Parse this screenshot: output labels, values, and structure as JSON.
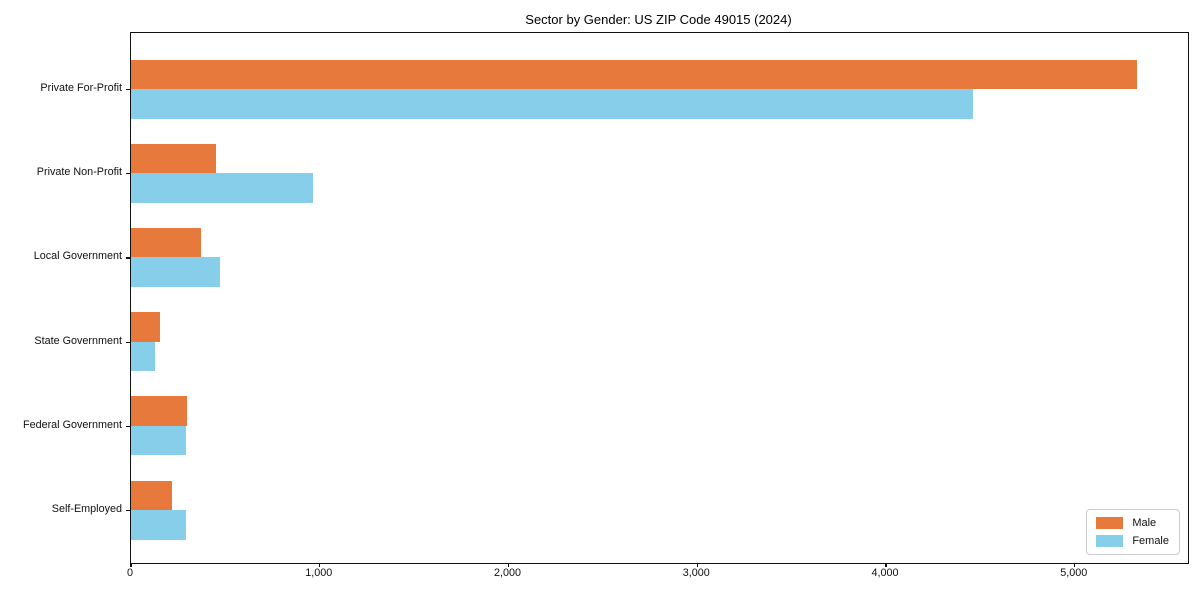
{
  "chart_data": {
    "type": "bar",
    "orientation": "horizontal",
    "title": "Sector by Gender: US ZIP Code 49015 (2024)",
    "categories": [
      "Private For-Profit",
      "Private Non-Profit",
      "Local Government",
      "State Government",
      "Federal Government",
      "Self-Employed"
    ],
    "series": [
      {
        "name": "Male",
        "color": "#e8793c",
        "values": [
          5330,
          450,
          370,
          153,
          295,
          215
        ]
      },
      {
        "name": "Female",
        "color": "#87ceeb",
        "values": [
          4460,
          965,
          470,
          128,
          290,
          290
        ]
      }
    ],
    "xlabel": "",
    "ylabel": "",
    "xlim": [
      0,
      5600
    ],
    "xticks": [
      0,
      1000,
      2000,
      3000,
      4000,
      5000
    ],
    "xtick_labels": [
      "0",
      "1,000",
      "2,000",
      "3,000",
      "4,000",
      "5,000"
    ],
    "grid": false,
    "legend": {
      "position": "lower right",
      "entries": [
        "Male",
        "Female"
      ]
    }
  }
}
